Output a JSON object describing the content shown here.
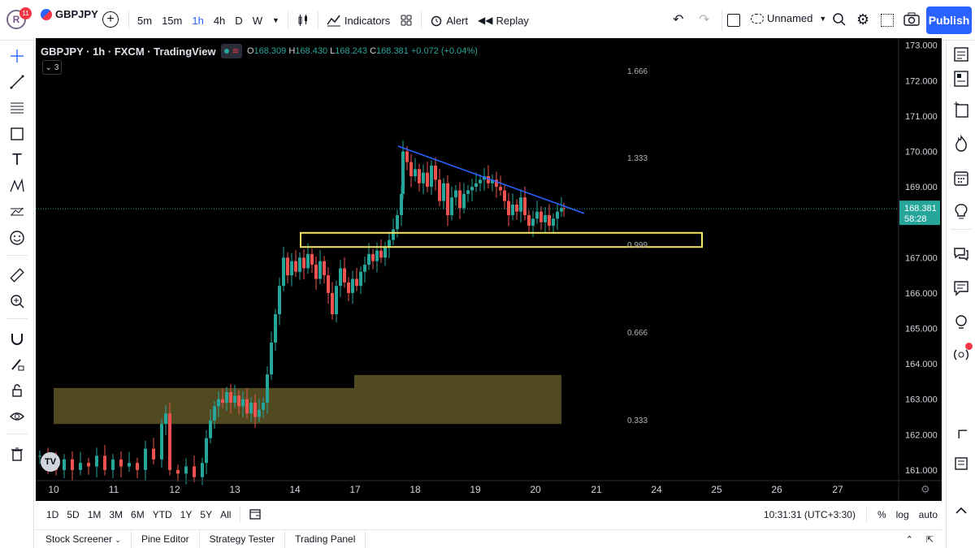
{
  "account": {
    "avatar_letter": "R",
    "notifications": "11"
  },
  "toolbar": {
    "symbol": "GBPJPY",
    "intervals": [
      "5m",
      "15m",
      "1h",
      "4h",
      "D",
      "W"
    ],
    "active_interval": "1h",
    "indicators_label": "Indicators",
    "alert_label": "Alert",
    "replay_label": "Replay",
    "layout_name": "Unnamed",
    "publish_label": "Publish"
  },
  "legend": {
    "symbol": "GBPJPY",
    "interval": "1h",
    "exchange": "FXCM",
    "source": "TradingView",
    "open_label": "O",
    "open": "168.309",
    "high_label": "H",
    "high": "168.430",
    "low_label": "L",
    "low": "168.243",
    "close_label": "C",
    "close": "168.381",
    "change": "+0.072 (+0.04%)",
    "collapsed_count": "3"
  },
  "colors": {
    "up": "#26a69a",
    "down": "#ef5350",
    "trendline": "#2962ff",
    "resistance_box": "#f5e663",
    "support_zone": "#5f5726",
    "price_label_bg": "#26a69a",
    "accent": "#2962ff"
  },
  "price_axis": {
    "ticks": [
      "173.000",
      "172.000",
      "171.000",
      "170.000",
      "169.000",
      "167.000",
      "166.000",
      "165.000",
      "164.000",
      "163.000",
      "162.000",
      "161.000"
    ],
    "current_price": "168.381",
    "countdown": "58:28"
  },
  "time_axis": {
    "ticks": [
      "10",
      "11",
      "12",
      "13",
      "14",
      "17",
      "18",
      "19",
      "20",
      "21",
      "24",
      "25",
      "26",
      "27"
    ]
  },
  "fib_levels": [
    "1.666",
    "1.333",
    "0.999",
    "0.666",
    "0.333"
  ],
  "bottom_bar": {
    "ranges": [
      "1D",
      "5D",
      "1M",
      "3M",
      "6M",
      "YTD",
      "1Y",
      "5Y",
      "All"
    ],
    "clock": "10:31:31 (UTC+3:30)",
    "percent_label": "%",
    "log_label": "log",
    "auto_label": "auto"
  },
  "panel_tabs": [
    "Stock Screener",
    "Pine Editor",
    "Strategy Tester",
    "Trading Panel"
  ],
  "chart_data": {
    "type": "candlestick",
    "symbol": "GBPJPY",
    "interval": "1h",
    "ylim": [
      160.7,
      173.2
    ],
    "close_path": [
      [
        0,
        161.4
      ],
      [
        10,
        161.2
      ],
      [
        20,
        161.0
      ],
      [
        30,
        161.3
      ],
      [
        40,
        161.0
      ],
      [
        50,
        161.2
      ],
      [
        60,
        161.1
      ],
      [
        70,
        161.4
      ],
      [
        80,
        161.0
      ],
      [
        90,
        161.3
      ],
      [
        100,
        161.1
      ],
      [
        110,
        161.2
      ],
      [
        120,
        161.0
      ],
      [
        130,
        161.6
      ],
      [
        140,
        161.3
      ],
      [
        150,
        162.3
      ],
      [
        155,
        162.6
      ],
      [
        160,
        161.0
      ],
      [
        170,
        160.9
      ],
      [
        180,
        161.1
      ],
      [
        190,
        160.8
      ],
      [
        200,
        161.2
      ],
      [
        205,
        161.9
      ],
      [
        210,
        162.4
      ],
      [
        215,
        162.8
      ],
      [
        220,
        163.0
      ],
      [
        225,
        162.9
      ],
      [
        230,
        163.2
      ],
      [
        235,
        162.9
      ],
      [
        240,
        163.1
      ],
      [
        245,
        162.8
      ],
      [
        250,
        163.0
      ],
      [
        255,
        162.6
      ],
      [
        260,
        162.9
      ],
      [
        265,
        162.5
      ],
      [
        270,
        162.7
      ],
      [
        275,
        162.9
      ],
      [
        280,
        163.7
      ],
      [
        285,
        164.6
      ],
      [
        290,
        165.4
      ],
      [
        295,
        166.2
      ],
      [
        300,
        167.0
      ],
      [
        305,
        166.5
      ],
      [
        310,
        166.9
      ],
      [
        315,
        166.6
      ],
      [
        320,
        167.0
      ],
      [
        325,
        166.7
      ],
      [
        330,
        167.1
      ],
      [
        335,
        166.8
      ],
      [
        340,
        166.4
      ],
      [
        345,
        166.9
      ],
      [
        350,
        166.5
      ],
      [
        355,
        166.0
      ],
      [
        360,
        165.4
      ],
      [
        365,
        166.2
      ],
      [
        370,
        166.7
      ],
      [
        375,
        166.3
      ],
      [
        380,
        166.0
      ],
      [
        385,
        166.4
      ],
      [
        390,
        166.2
      ],
      [
        395,
        166.6
      ],
      [
        400,
        166.8
      ],
      [
        405,
        167.1
      ],
      [
        410,
        166.9
      ],
      [
        415,
        167.2
      ],
      [
        420,
        167.0
      ],
      [
        425,
        167.3
      ],
      [
        430,
        167.5
      ],
      [
        435,
        167.8
      ],
      [
        440,
        168.2
      ],
      [
        445,
        168.8
      ],
      [
        447,
        170.0
      ],
      [
        452,
        169.7
      ],
      [
        457,
        169.3
      ],
      [
        462,
        169.5
      ],
      [
        467,
        169.1
      ],
      [
        472,
        169.4
      ],
      [
        477,
        169.0
      ],
      [
        482,
        169.6
      ],
      [
        487,
        169.2
      ],
      [
        492,
        168.6
      ],
      [
        497,
        169.1
      ],
      [
        502,
        168.2
      ],
      [
        507,
        168.7
      ],
      [
        512,
        168.9
      ],
      [
        517,
        168.4
      ],
      [
        522,
        168.8
      ],
      [
        527,
        168.9
      ],
      [
        532,
        169.0
      ],
      [
        537,
        169.1
      ],
      [
        542,
        169.2
      ],
      [
        547,
        169.3
      ],
      [
        552,
        169.1
      ],
      [
        557,
        169.2
      ],
      [
        562,
        169.0
      ],
      [
        567,
        168.9
      ],
      [
        572,
        168.6
      ],
      [
        577,
        168.2
      ],
      [
        582,
        168.5
      ],
      [
        587,
        168.3
      ],
      [
        592,
        168.7
      ],
      [
        597,
        168.2
      ],
      [
        602,
        167.9
      ],
      [
        607,
        168.1
      ],
      [
        612,
        168.3
      ],
      [
        617,
        168.0
      ],
      [
        622,
        168.2
      ],
      [
        627,
        167.9
      ],
      [
        632,
        168.1
      ],
      [
        637,
        168.3
      ],
      [
        642,
        168.4
      ],
      [
        645,
        168.381
      ]
    ],
    "trendline": {
      "from": [
        "Nov 17",
        170.15
      ],
      "to": [
        "Nov 20",
        168.3
      ]
    },
    "resistance_box": {
      "top": 167.7,
      "bottom": 167.3
    },
    "support_zone": {
      "top": 163.5,
      "bottom": 162.3
    }
  }
}
